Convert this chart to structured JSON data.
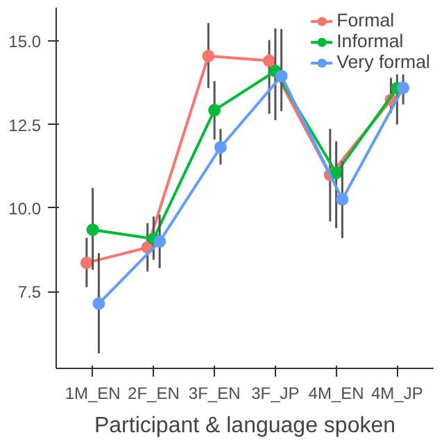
{
  "chart_data": {
    "type": "line",
    "xlabel": "Participant & language spoken",
    "categories": [
      "1M_EN",
      "2F_EN",
      "3F_EN",
      "3F_JP",
      "4M_EN",
      "4M_JP"
    ],
    "ylim": [
      5.2,
      16.0
    ],
    "yticks": [
      {
        "value": 7.5,
        "label": "7.5"
      },
      {
        "value": 10.0,
        "label": "10.0"
      },
      {
        "value": 12.5,
        "label": "12.5"
      },
      {
        "value": 15.0,
        "label": "15.0"
      }
    ],
    "grid": false,
    "legend": "top right",
    "marker": "circle",
    "line_style": "solid",
    "series": [
      {
        "name": "Formal",
        "color": "#f8766d",
        "values": [
          8.36,
          8.82,
          14.55,
          14.41,
          10.99,
          13.24
        ],
        "errors": [
          [
            7.63,
            9.11
          ],
          [
            8.1,
            9.55
          ],
          [
            13.59,
            15.54
          ],
          [
            12.82,
            15.03
          ],
          [
            9.6,
            12.37
          ],
          [
            12.85,
            13.9
          ]
        ]
      },
      {
        "name": "Informal",
        "color": "#00ba38",
        "values": [
          9.35,
          9.08,
          12.93,
          14.1,
          11.05,
          13.59
        ],
        "errors": [
          [
            8.15,
            10.6
          ],
          [
            8.45,
            9.75
          ],
          [
            12.05,
            13.8
          ],
          [
            12.63,
            15.38
          ],
          [
            9.4,
            12.0
          ],
          [
            12.5,
            14.0
          ]
        ]
      },
      {
        "name": "Very formal",
        "color": "#619cff",
        "values": [
          7.14,
          9.0,
          11.82,
          13.95,
          10.26,
          13.6
        ],
        "errors": [
          [
            5.65,
            8.65
          ],
          [
            8.2,
            9.8
          ],
          [
            11.3,
            12.37
          ],
          [
            12.9,
            15.36
          ],
          [
            9.1,
            11.4
          ],
          [
            13.1,
            14.0
          ]
        ]
      }
    ]
  }
}
